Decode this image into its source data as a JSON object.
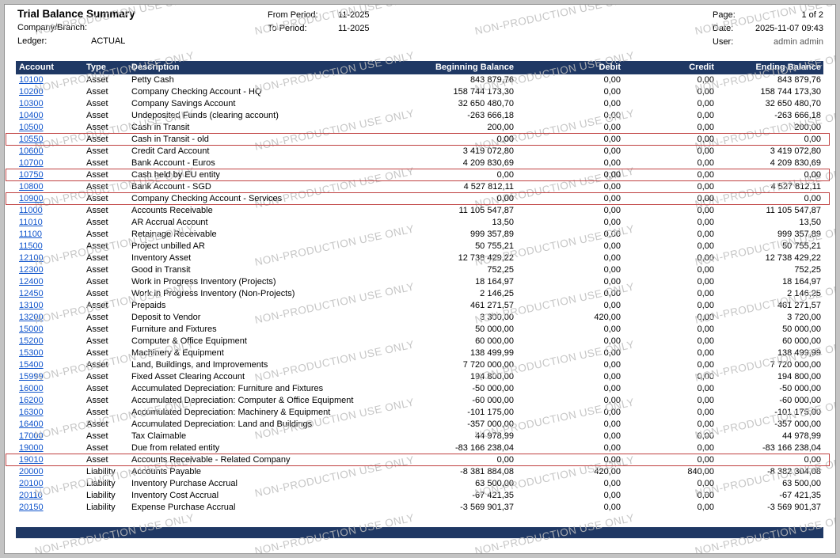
{
  "report": {
    "title": "Trial Balance Summary",
    "company_branch_label": "Company/Branch:",
    "company_branch_value": "",
    "ledger_label": "Ledger:",
    "ledger_value": "ACTUAL",
    "from_period_label": "From Period:",
    "from_period_value": "11-2025",
    "to_period_label": "To Period:",
    "to_period_value": "11-2025",
    "page_label": "Page:",
    "page_value": "1 of 2",
    "date_label": "Date:",
    "date_value": "2025-11-07 09:43",
    "user_label": "User:",
    "user_value": "admin admin"
  },
  "watermark": {
    "text": "NON-PRODUCTION USE ONLY"
  },
  "colors": {
    "header_bg": "#1f3864",
    "link": "#1155cc",
    "highlight_border": "#bf4040"
  },
  "table": {
    "columns": [
      "Account",
      "Type",
      "Description",
      "Beginning Balance",
      "Debit",
      "Credit",
      "Ending Balance"
    ],
    "rows": [
      {
        "account": "10100",
        "type": "Asset",
        "description": "Petty Cash",
        "beginning": "843 879,76",
        "debit": "0,00",
        "credit": "0,00",
        "ending": "843 879,76",
        "highlighted": false
      },
      {
        "account": "10200",
        "type": "Asset",
        "description": "Company Checking Account - HQ",
        "beginning": "158 744 173,30",
        "debit": "0,00",
        "credit": "0,00",
        "ending": "158 744 173,30",
        "highlighted": false
      },
      {
        "account": "10300",
        "type": "Asset",
        "description": "Company Savings Account",
        "beginning": "32 650 480,70",
        "debit": "0,00",
        "credit": "0,00",
        "ending": "32 650 480,70",
        "highlighted": false
      },
      {
        "account": "10400",
        "type": "Asset",
        "description": "Undeposited Funds (clearing account)",
        "beginning": "-263 666,18",
        "debit": "0,00",
        "credit": "0,00",
        "ending": "-263 666,18",
        "highlighted": false
      },
      {
        "account": "10500",
        "type": "Asset",
        "description": "Cash in Transit",
        "beginning": "200,00",
        "debit": "0,00",
        "credit": "0,00",
        "ending": "200,00",
        "highlighted": false
      },
      {
        "account": "10550",
        "type": "Asset",
        "description": "Cash in Transit - old",
        "beginning": "0,00",
        "debit": "0,00",
        "credit": "0,00",
        "ending": "0,00",
        "highlighted": true
      },
      {
        "account": "10600",
        "type": "Asset",
        "description": "Credit Card Account",
        "beginning": "3 419 072,80",
        "debit": "0,00",
        "credit": "0,00",
        "ending": "3 419 072,80",
        "highlighted": false
      },
      {
        "account": "10700",
        "type": "Asset",
        "description": "Bank Account - Euros",
        "beginning": "4 209 830,69",
        "debit": "0,00",
        "credit": "0,00",
        "ending": "4 209 830,69",
        "highlighted": false
      },
      {
        "account": "10750",
        "type": "Asset",
        "description": "Cash held by EU entity",
        "beginning": "0,00",
        "debit": "0,00",
        "credit": "0,00",
        "ending": "0,00",
        "highlighted": true
      },
      {
        "account": "10800",
        "type": "Asset",
        "description": "Bank Account - SGD",
        "beginning": "4 527 812,11",
        "debit": "0,00",
        "credit": "0,00",
        "ending": "4 527 812,11",
        "highlighted": false
      },
      {
        "account": "10900",
        "type": "Asset",
        "description": "Company Checking Account - Services",
        "beginning": "0,00",
        "debit": "0,00",
        "credit": "0,00",
        "ending": "0,00",
        "highlighted": true
      },
      {
        "account": "11000",
        "type": "Asset",
        "description": "Accounts Receivable",
        "beginning": "11 105 547,87",
        "debit": "0,00",
        "credit": "0,00",
        "ending": "11 105 547,87",
        "highlighted": false
      },
      {
        "account": "11010",
        "type": "Asset",
        "description": "AR Accrual Account",
        "beginning": "13,50",
        "debit": "0,00",
        "credit": "0,00",
        "ending": "13,50",
        "highlighted": false
      },
      {
        "account": "11100",
        "type": "Asset",
        "description": "Retainage Receivable",
        "beginning": "999 357,89",
        "debit": "0,00",
        "credit": "0,00",
        "ending": "999 357,89",
        "highlighted": false
      },
      {
        "account": "11500",
        "type": "Asset",
        "description": "Project unbilled AR",
        "beginning": "50 755,21",
        "debit": "0,00",
        "credit": "0,00",
        "ending": "50 755,21",
        "highlighted": false
      },
      {
        "account": "12100",
        "type": "Asset",
        "description": "Inventory Asset",
        "beginning": "12 738 429,22",
        "debit": "0,00",
        "credit": "0,00",
        "ending": "12 738 429,22",
        "highlighted": false
      },
      {
        "account": "12300",
        "type": "Asset",
        "description": "Good in Transit",
        "beginning": "752,25",
        "debit": "0,00",
        "credit": "0,00",
        "ending": "752,25",
        "highlighted": false
      },
      {
        "account": "12400",
        "type": "Asset",
        "description": "Work in Progress Inventory (Projects)",
        "beginning": "18 164,97",
        "debit": "0,00",
        "credit": "0,00",
        "ending": "18 164,97",
        "highlighted": false
      },
      {
        "account": "12450",
        "type": "Asset",
        "description": "Work in Progress Inventory (Non-Projects)",
        "beginning": "2 146,25",
        "debit": "0,00",
        "credit": "0,00",
        "ending": "2 146,25",
        "highlighted": false
      },
      {
        "account": "13100",
        "type": "Asset",
        "description": "Prepaids",
        "beginning": "461 271,57",
        "debit": "0,00",
        "credit": "0,00",
        "ending": "461 271,57",
        "highlighted": false
      },
      {
        "account": "13200",
        "type": "Asset",
        "description": "Deposit to Vendor",
        "beginning": "3 300,00",
        "debit": "420,00",
        "credit": "0,00",
        "ending": "3 720,00",
        "highlighted": false
      },
      {
        "account": "15000",
        "type": "Asset",
        "description": "Furniture and Fixtures",
        "beginning": "50 000,00",
        "debit": "0,00",
        "credit": "0,00",
        "ending": "50 000,00",
        "highlighted": false
      },
      {
        "account": "15200",
        "type": "Asset",
        "description": "Computer & Office Equipment",
        "beginning": "60 000,00",
        "debit": "0,00",
        "credit": "0,00",
        "ending": "60 000,00",
        "highlighted": false
      },
      {
        "account": "15300",
        "type": "Asset",
        "description": "Machinery & Equipment",
        "beginning": "138 499,99",
        "debit": "0,00",
        "credit": "0,00",
        "ending": "138 499,99",
        "highlighted": false
      },
      {
        "account": "15400",
        "type": "Asset",
        "description": "Land, Buildings, and Improvements",
        "beginning": "7 720 000,00",
        "debit": "0,00",
        "credit": "0,00",
        "ending": "7 720 000,00",
        "highlighted": false
      },
      {
        "account": "15999",
        "type": "Asset",
        "description": "Fixed Asset Clearing Account",
        "beginning": "194 800,00",
        "debit": "0,00",
        "credit": "0,00",
        "ending": "194 800,00",
        "highlighted": false
      },
      {
        "account": "16000",
        "type": "Asset",
        "description": "Accumulated Depreciation: Furniture and Fixtures",
        "beginning": "-50 000,00",
        "debit": "0,00",
        "credit": "0,00",
        "ending": "-50 000,00",
        "highlighted": false
      },
      {
        "account": "16200",
        "type": "Asset",
        "description": "Accumulated Depreciation: Computer & Office Equipment",
        "beginning": "-60 000,00",
        "debit": "0,00",
        "credit": "0,00",
        "ending": "-60 000,00",
        "highlighted": false
      },
      {
        "account": "16300",
        "type": "Asset",
        "description": "Accumulated Depreciation: Machinery & Equipment",
        "beginning": "-101 175,00",
        "debit": "0,00",
        "credit": "0,00",
        "ending": "-101 175,00",
        "highlighted": false
      },
      {
        "account": "16400",
        "type": "Asset",
        "description": "Accumulated Depreciation: Land and Buildings",
        "beginning": "-357 000,00",
        "debit": "0,00",
        "credit": "0,00",
        "ending": "-357 000,00",
        "highlighted": false
      },
      {
        "account": "17000",
        "type": "Asset",
        "description": "Tax Claimable",
        "beginning": "44 978,99",
        "debit": "0,00",
        "credit": "0,00",
        "ending": "44 978,99",
        "highlighted": false
      },
      {
        "account": "19000",
        "type": "Asset",
        "description": "Due from related entity",
        "beginning": "-83 166 238,04",
        "debit": "0,00",
        "credit": "0,00",
        "ending": "-83 166 238,04",
        "highlighted": false
      },
      {
        "account": "19010",
        "type": "Asset",
        "description": "Accounts Receivable - Related Company",
        "beginning": "0,00",
        "debit": "0,00",
        "credit": "0,00",
        "ending": "0,00",
        "highlighted": true
      },
      {
        "account": "20000",
        "type": "Liability",
        "description": "Accounts Payable",
        "beginning": "-8 381 884,08",
        "debit": "420,00",
        "credit": "840,00",
        "ending": "-8 382 304,08",
        "highlighted": false
      },
      {
        "account": "20100",
        "type": "Liability",
        "description": "Inventory Purchase Accrual",
        "beginning": "63 500,00",
        "debit": "0,00",
        "credit": "0,00",
        "ending": "63 500,00",
        "highlighted": false
      },
      {
        "account": "20110",
        "type": "Liability",
        "description": "Inventory Cost Accrual",
        "beginning": "-67 421,35",
        "debit": "0,00",
        "credit": "0,00",
        "ending": "-67 421,35",
        "highlighted": false
      },
      {
        "account": "20150",
        "type": "Liability",
        "description": "Expense Purchase Accrual",
        "beginning": "-3 569 901,37",
        "debit": "0,00",
        "credit": "0,00",
        "ending": "-3 569 901,37",
        "highlighted": false
      }
    ]
  }
}
